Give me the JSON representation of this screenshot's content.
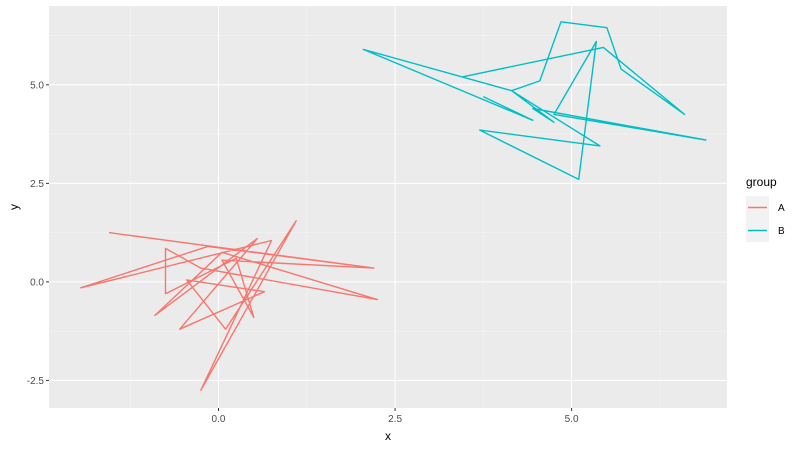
{
  "chart_data": {
    "type": "line",
    "title": "",
    "xlabel": "x",
    "ylabel": "y",
    "xlim": [
      -2.4,
      7.2
    ],
    "ylim": [
      -3.2,
      7.0
    ],
    "x_ticks": [
      0.0,
      2.5,
      5.0
    ],
    "x_tick_labels": [
      "0.0",
      "2.5",
      "5.0"
    ],
    "y_ticks": [
      -2.5,
      0.0,
      2.5,
      5.0
    ],
    "y_tick_labels": [
      "-2.5",
      "0.0",
      "2.5",
      "5.0"
    ],
    "grid": true,
    "legend": {
      "title": "group",
      "position": "right",
      "entries": [
        "A",
        "B"
      ]
    },
    "series": [
      {
        "name": "A",
        "color": "#F8766D",
        "points": [
          [
            -1.55,
            1.25
          ],
          [
            2.2,
            0.35
          ],
          [
            -0.15,
            0.9
          ],
          [
            -1.95,
            -0.15
          ],
          [
            0.75,
            1.05
          ],
          [
            -0.25,
            -2.75
          ],
          [
            1.1,
            1.55
          ],
          [
            0.1,
            -1.2
          ],
          [
            -0.45,
            0.05
          ],
          [
            0.65,
            -0.25
          ],
          [
            -0.55,
            -1.2
          ],
          [
            0.55,
            1.1
          ],
          [
            -0.9,
            -0.85
          ],
          [
            0.05,
            0.75
          ],
          [
            2.25,
            -0.45
          ],
          [
            -0.25,
            0.35
          ],
          [
            -0.75,
            0.85
          ],
          [
            -0.75,
            -0.3
          ],
          [
            0.25,
            0.6
          ],
          [
            0.5,
            -0.9
          ],
          [
            0.05,
            0.55
          ],
          [
            2.2,
            0.35
          ]
        ]
      },
      {
        "name": "B",
        "color": "#00BFC4",
        "points": [
          [
            3.45,
            5.2
          ],
          [
            5.45,
            5.95
          ],
          [
            6.6,
            4.25
          ],
          [
            5.7,
            5.4
          ],
          [
            5.5,
            6.45
          ],
          [
            4.85,
            6.6
          ],
          [
            4.55,
            5.1
          ],
          [
            4.15,
            4.85
          ],
          [
            4.75,
            4.05
          ],
          [
            4.45,
            4.4
          ],
          [
            6.9,
            3.6
          ],
          [
            4.75,
            4.25
          ],
          [
            5.35,
            6.1
          ],
          [
            5.1,
            2.6
          ],
          [
            3.7,
            3.85
          ],
          [
            5.4,
            3.45
          ],
          [
            4.15,
            4.85
          ],
          [
            2.05,
            5.9
          ],
          [
            4.45,
            4.1
          ],
          [
            3.75,
            4.7
          ]
        ]
      }
    ]
  }
}
